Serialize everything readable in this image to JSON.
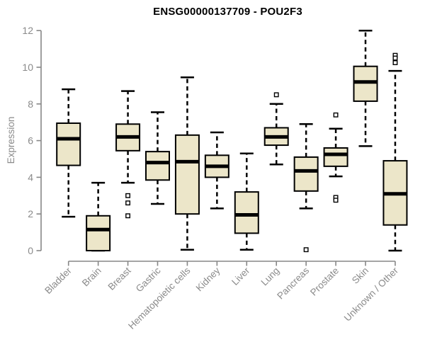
{
  "colors": {
    "background": "#ffffff",
    "box_fill": "#ece6c9",
    "box_border": "#000000",
    "median": "#000000",
    "whisker": "#000000",
    "outlier_fill": "#ffffff",
    "axis": "#878787",
    "tick_text": "#8a8a8a",
    "title_text": "#000000"
  },
  "chart_data": {
    "type": "boxplot",
    "title": "ENSG00000137709 - POU2F3",
    "xlabel": "",
    "ylabel": "Expression",
    "ylim": [
      0,
      12
    ],
    "yticks": [
      0,
      2,
      4,
      6,
      8,
      10,
      12
    ],
    "grid": false,
    "x_tick_rotation": -45,
    "categories": [
      "Bladder",
      "Brain",
      "Breast",
      "Gastric",
      "Hematopoietic cells",
      "Kidney",
      "Liver",
      "Lung",
      "Pancreas",
      "Prostate",
      "Skin",
      "Unknown / Other"
    ],
    "series": [
      {
        "name": "Bladder",
        "whisker_low": 1.85,
        "q1": 4.65,
        "median": 6.1,
        "q3": 6.95,
        "whisker_high": 8.8,
        "outliers": []
      },
      {
        "name": "Brain",
        "whisker_low": 0.0,
        "q1": 0.0,
        "median": 1.15,
        "q3": 1.9,
        "whisker_high": 3.7,
        "outliers": []
      },
      {
        "name": "Breast",
        "whisker_low": 3.7,
        "q1": 5.45,
        "median": 6.2,
        "q3": 6.9,
        "whisker_high": 8.7,
        "outliers": [
          3.0,
          2.6,
          1.9
        ]
      },
      {
        "name": "Gastric",
        "whisker_low": 2.55,
        "q1": 3.85,
        "median": 4.8,
        "q3": 5.4,
        "whisker_high": 7.55,
        "outliers": []
      },
      {
        "name": "Hematopoietic cells",
        "whisker_low": 0.05,
        "q1": 2.0,
        "median": 4.85,
        "q3": 6.3,
        "whisker_high": 9.45,
        "outliers": []
      },
      {
        "name": "Kidney",
        "whisker_low": 2.3,
        "q1": 4.0,
        "median": 4.6,
        "q3": 5.2,
        "whisker_high": 6.45,
        "outliers": []
      },
      {
        "name": "Liver",
        "whisker_low": 0.05,
        "q1": 0.95,
        "median": 1.95,
        "q3": 3.2,
        "whisker_high": 5.3,
        "outliers": []
      },
      {
        "name": "Lung",
        "whisker_low": 4.7,
        "q1": 5.75,
        "median": 6.2,
        "q3": 6.7,
        "whisker_high": 8.0,
        "outliers": [
          8.5
        ]
      },
      {
        "name": "Pancreas",
        "whisker_low": 2.3,
        "q1": 3.25,
        "median": 4.35,
        "q3": 5.1,
        "whisker_high": 6.9,
        "outliers": [
          0.05
        ]
      },
      {
        "name": "Prostate",
        "whisker_low": 4.05,
        "q1": 4.6,
        "median": 5.25,
        "q3": 5.6,
        "whisker_high": 6.65,
        "outliers": [
          7.4,
          2.9,
          2.75
        ]
      },
      {
        "name": "Skin",
        "whisker_low": 5.7,
        "q1": 8.15,
        "median": 9.2,
        "q3": 10.05,
        "whisker_high": 12.0,
        "outliers": []
      },
      {
        "name": "Unknown / Other",
        "whisker_low": 0.0,
        "q1": 1.4,
        "median": 3.1,
        "q3": 4.9,
        "whisker_high": 9.8,
        "outliers": [
          10.65,
          10.5,
          10.25
        ]
      }
    ]
  }
}
